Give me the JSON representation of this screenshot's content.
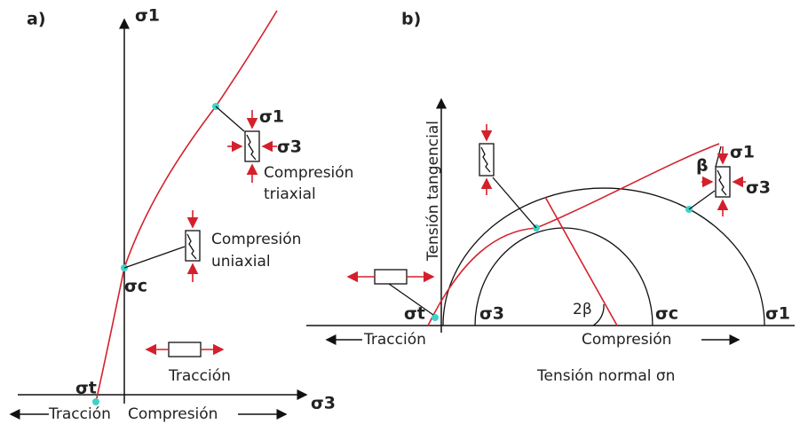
{
  "panel_a": {
    "label": "a)",
    "sigma1_axis": "σ1",
    "sigma3_axis": "σ3",
    "sigma_t": "σt",
    "sigma_c": "σc",
    "triaxial": {
      "sigma1": "σ1",
      "sigma3": "σ3",
      "line1": "Compresión",
      "line2": "triaxial"
    },
    "uniaxial": {
      "line1": "Compresión",
      "line2": "uniaxial"
    },
    "traction_label": "Tracción",
    "axis_left": "Tracción",
    "axis_right": "Compresión"
  },
  "panel_b": {
    "label": "b)",
    "y_axis": "Tensión tangencial",
    "x_axis": "Tensión normal σn",
    "sigma_t": "σt",
    "sigma3": "σ3",
    "sigma_c": "σc",
    "sigma1": "σ1",
    "two_beta": "2β",
    "beta": "β",
    "element": {
      "sigma1": "σ1",
      "sigma3": "σ3"
    },
    "axis_left": "Tracción",
    "axis_right": "Compresión"
  }
}
